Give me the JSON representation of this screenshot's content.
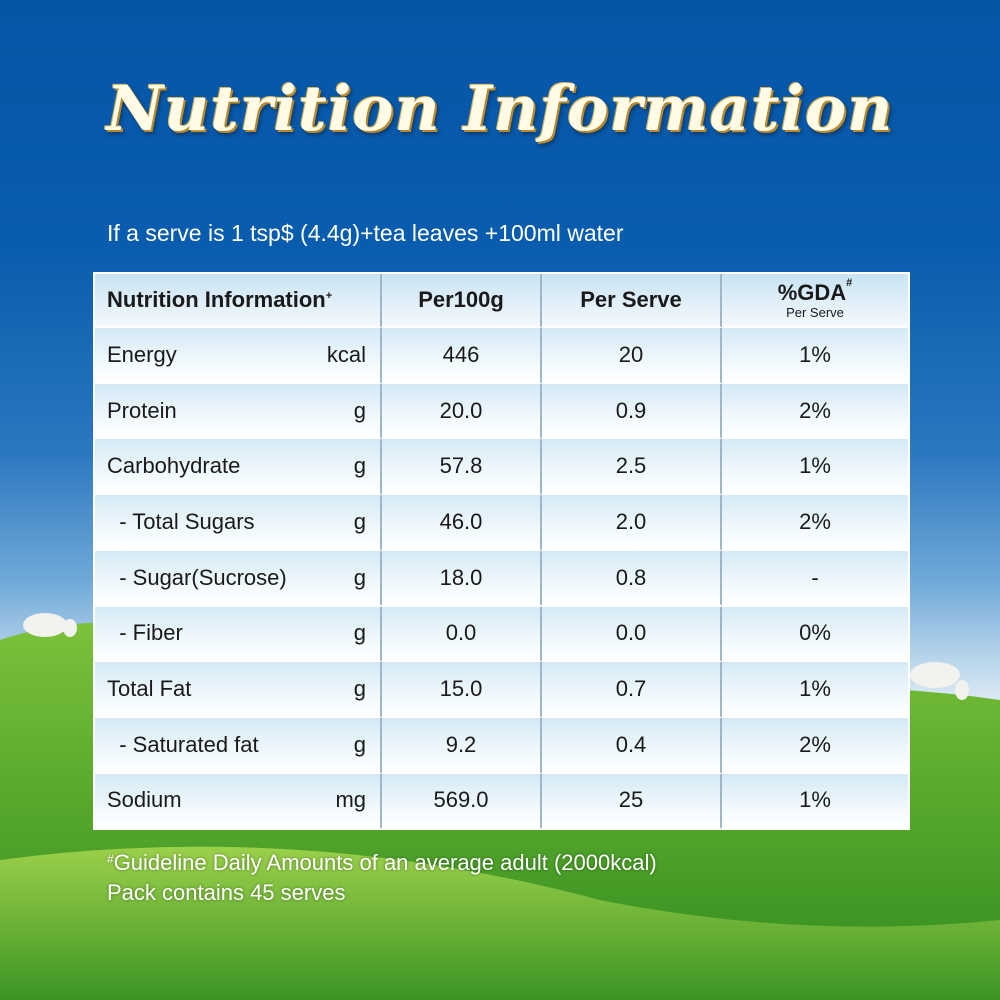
{
  "title": "Nutrition Information",
  "serve_note": "If a serve is 1 tsp$ (4.4g)+tea leaves +100ml water",
  "table": {
    "headers": {
      "col1": "Nutrition Information",
      "col1_mark": "+",
      "col2": "Per100g",
      "col3": "Per Serve",
      "col4": "%GDA",
      "col4_mark": "#",
      "col4_sub": "Per Serve"
    },
    "rows": [
      {
        "name": "Energy",
        "unit": "kcal",
        "per100g": "446",
        "per_serve": "20",
        "gda": "1%"
      },
      {
        "name": "Protein",
        "unit": "g",
        "per100g": "20.0",
        "per_serve": "0.9",
        "gda": "2%"
      },
      {
        "name": "Carbohydrate",
        "unit": "g",
        "per100g": "57.8",
        "per_serve": "2.5",
        "gda": "1%"
      },
      {
        "name": "  - Total Sugars",
        "unit": "g",
        "per100g": "46.0",
        "per_serve": "2.0",
        "gda": "2%"
      },
      {
        "name": "  - Sugar(Sucrose)",
        "unit": "g",
        "per100g": "18.0",
        "per_serve": "0.8",
        "gda": "-"
      },
      {
        "name": "  - Fiber",
        "unit": "g",
        "per100g": "0.0",
        "per_serve": "0.0",
        "gda": "0%"
      },
      {
        "name": "Total Fat",
        "unit": "g",
        "per100g": "15.0",
        "per_serve": "0.7",
        "gda": "1%"
      },
      {
        "name": "  - Saturated fat",
        "unit": "g",
        "per100g": "9.2",
        "per_serve": "0.4",
        "gda": "2%"
      },
      {
        "name": "Sodium",
        "unit": "mg",
        "per100g": "569.0",
        "per_serve": "25",
        "gda": "1%"
      }
    ]
  },
  "footnote": {
    "mark": "#",
    "line1": "Guideline Daily Amounts of an average adult (2000kcal)",
    "line2": "Pack contains 45 serves"
  }
}
